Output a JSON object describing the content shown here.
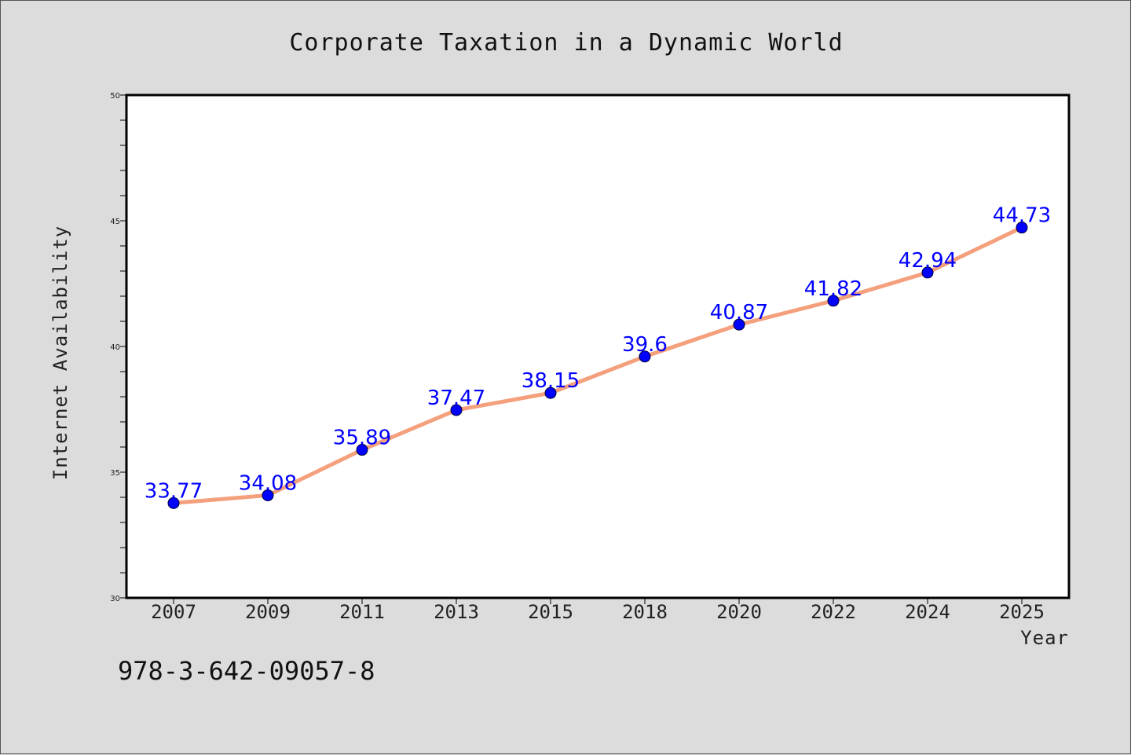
{
  "chart_data": {
    "type": "line",
    "title": "Corporate Taxation in a Dynamic World",
    "xlabel": "Year",
    "ylabel": "Internet Availability",
    "categories": [
      "2007",
      "2009",
      "2011",
      "2013",
      "2015",
      "2018",
      "2020",
      "2022",
      "2024",
      "2025"
    ],
    "series": [
      {
        "values": [
          33.77,
          34.08,
          35.89,
          37.47,
          38.15,
          39.6,
          40.87,
          41.82,
          42.94,
          44.73
        ],
        "data_labels": [
          "33.77",
          "34.08",
          "35.89",
          "37.47",
          "38.15",
          "39.6",
          "40.87",
          "41.82",
          "42.94",
          "44.73"
        ],
        "line_color": "#f4a07c",
        "marker_color": "#0000ff"
      }
    ],
    "ylim": [
      30,
      50
    ],
    "yticks": [
      "30",
      "35",
      "40",
      "45",
      "50"
    ],
    "grid": false,
    "legend": "none"
  },
  "footnote": "978-3-642-09057-8",
  "colors": {
    "background": "#dcdcdc",
    "plot_background": "#ffffff",
    "data_label": "#0000ff"
  }
}
